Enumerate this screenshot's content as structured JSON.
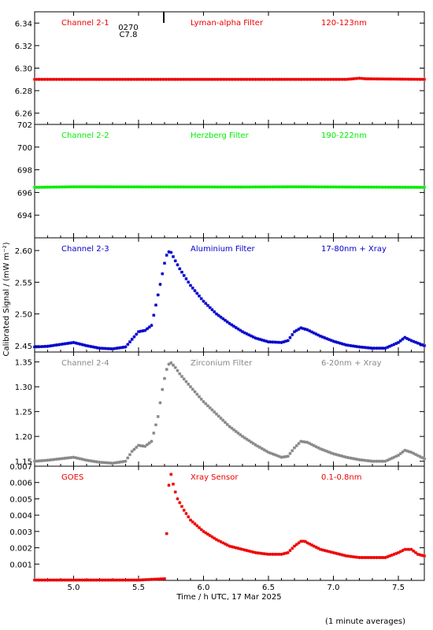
{
  "figure": {
    "ylabel": "Calibrated Signal / (mW m⁻²)",
    "xlabel": "Time / h UTC, 17 Mar 2025",
    "footnote": "(1 minute averages)",
    "event_marker": {
      "x": 5.72,
      "label_top": "0270",
      "label_bottom": "C7.8"
    },
    "x_range": [
      4.7,
      7.7
    ],
    "x_ticks": [
      "5.0",
      "5.5",
      "6.0",
      "6.5",
      "7.0",
      "7.5"
    ]
  },
  "chart_data": [
    {
      "type": "scatter",
      "channel": "Channel 2-1",
      "filter": "Lyman-alpha Filter",
      "band": "120-123nm",
      "color": "#ee0000",
      "ylim": [
        6.25,
        6.35
      ],
      "y_ticks": [
        "6.34",
        "6.32",
        "6.30",
        "6.28",
        "6.26"
      ],
      "series": [
        {
          "x": [
            4.7,
            7.1,
            7.15,
            7.2,
            7.25,
            7.7
          ],
          "y": [
            6.29,
            6.29,
            6.2905,
            6.291,
            6.2905,
            6.29
          ]
        }
      ]
    },
    {
      "type": "scatter",
      "channel": "Channel 2-2",
      "filter": "Herzberg Filter",
      "band": "190-222nm",
      "color": "#00ee00",
      "ylim": [
        692,
        702
      ],
      "y_ticks": [
        "702",
        "700",
        "698",
        "696",
        "694"
      ],
      "series": [
        {
          "x": [
            4.7,
            5.0,
            6.3,
            6.7,
            7.7
          ],
          "y": [
            696.45,
            696.5,
            696.48,
            696.5,
            696.45
          ]
        }
      ]
    },
    {
      "type": "scatter",
      "channel": "Channel 2-3",
      "filter": "Aluminium Filter",
      "band": "17-80nm + Xray",
      "color": "#0000cc",
      "ylim": [
        2.44,
        2.62
      ],
      "y_ticks": [
        "2.60",
        "2.55",
        "2.50",
        "2.45"
      ],
      "series": [
        {
          "x": [
            4.7,
            4.8,
            4.9,
            5.0,
            5.1,
            5.2,
            5.3,
            5.4,
            5.45,
            5.5,
            5.55,
            5.6,
            5.65,
            5.68,
            5.71,
            5.73,
            5.75,
            5.78,
            5.82,
            5.9,
            6.0,
            6.1,
            6.2,
            6.3,
            6.4,
            6.5,
            6.6,
            6.65,
            6.7,
            6.75,
            6.8,
            6.9,
            7.0,
            7.1,
            7.2,
            7.3,
            7.4,
            7.5,
            7.55,
            7.6,
            7.7
          ],
          "y": [
            2.448,
            2.449,
            2.452,
            2.455,
            2.45,
            2.446,
            2.445,
            2.448,
            2.46,
            2.472,
            2.474,
            2.482,
            2.53,
            2.56,
            2.59,
            2.598,
            2.597,
            2.585,
            2.57,
            2.545,
            2.52,
            2.5,
            2.485,
            2.472,
            2.462,
            2.456,
            2.455,
            2.458,
            2.472,
            2.478,
            2.475,
            2.465,
            2.457,
            2.451,
            2.448,
            2.446,
            2.446,
            2.455,
            2.463,
            2.458,
            2.45
          ]
        }
      ]
    },
    {
      "type": "scatter",
      "channel": "Channel 2-4",
      "filter": "Zirconium Filter",
      "band": "6-20nm + Xray",
      "color": "#888888",
      "ylim": [
        1.14,
        1.37
      ],
      "y_ticks": [
        "1.35",
        "1.30",
        "1.25",
        "1.20",
        "1.15"
      ],
      "series": [
        {
          "x": [
            4.7,
            4.8,
            4.9,
            5.0,
            5.1,
            5.2,
            5.3,
            5.4,
            5.45,
            5.5,
            5.55,
            5.6,
            5.65,
            5.68,
            5.71,
            5.73,
            5.75,
            5.78,
            5.82,
            5.9,
            6.0,
            6.1,
            6.2,
            6.3,
            6.4,
            6.5,
            6.6,
            6.65,
            6.7,
            6.75,
            6.8,
            6.9,
            7.0,
            7.1,
            7.2,
            7.3,
            7.4,
            7.5,
            7.55,
            7.6,
            7.7
          ],
          "y": [
            1.15,
            1.152,
            1.155,
            1.158,
            1.152,
            1.148,
            1.146,
            1.15,
            1.17,
            1.182,
            1.18,
            1.19,
            1.24,
            1.29,
            1.33,
            1.345,
            1.348,
            1.34,
            1.325,
            1.3,
            1.27,
            1.245,
            1.22,
            1.2,
            1.183,
            1.168,
            1.158,
            1.16,
            1.177,
            1.19,
            1.188,
            1.175,
            1.165,
            1.158,
            1.153,
            1.15,
            1.15,
            1.162,
            1.172,
            1.168,
            1.155
          ]
        }
      ]
    },
    {
      "type": "scatter",
      "channel": "GOES",
      "filter": "Xray Sensor",
      "band": "0.1-0.8nm",
      "color": "#ee0000",
      "ylim": [
        0.0,
        0.007
      ],
      "y_ticks": [
        "0.007",
        "0.006",
        "0.005",
        "0.004",
        "0.003",
        "0.002",
        "0.001"
      ],
      "series": [
        {
          "x": [
            4.7,
            5.0,
            5.5,
            5.7,
            5.71,
            5.72,
            5.73,
            5.75,
            5.76,
            5.78,
            5.8,
            5.85,
            5.9,
            6.0,
            6.1,
            6.2,
            6.3,
            6.4,
            6.5,
            6.6,
            6.65,
            6.7,
            6.75,
            6.78,
            6.8,
            6.9,
            7.0,
            7.1,
            7.2,
            7.3,
            7.4,
            7.5,
            7.55,
            7.6,
            7.65,
            7.7
          ],
          "y": [
            2e-05,
            2e-05,
            2e-05,
            0.0001,
            0.0004,
            0.0041,
            0.0057,
            0.0065,
            0.0061,
            0.0055,
            0.005,
            0.0043,
            0.0037,
            0.003,
            0.0025,
            0.0021,
            0.0019,
            0.0017,
            0.0016,
            0.0016,
            0.0017,
            0.0021,
            0.0024,
            0.0024,
            0.0023,
            0.0019,
            0.0017,
            0.0015,
            0.0014,
            0.0014,
            0.0014,
            0.0017,
            0.0019,
            0.0019,
            0.0016,
            0.0015
          ]
        }
      ]
    }
  ]
}
